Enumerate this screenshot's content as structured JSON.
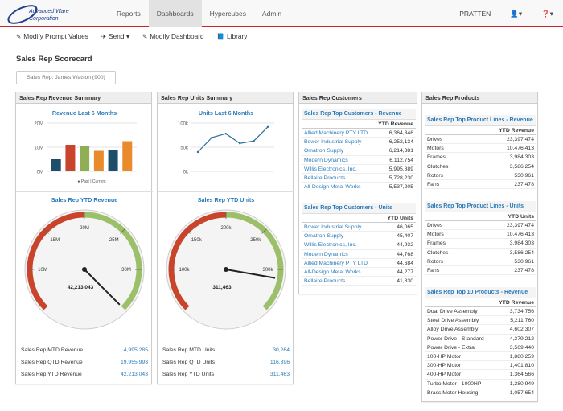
{
  "brand": {
    "line1": "Advanced Ware",
    "line2": "Corporation"
  },
  "nav": {
    "items": [
      "Reports",
      "Dashboards",
      "Hypercubes",
      "Admin"
    ],
    "active": "Dashboards",
    "user": "PRATTEN"
  },
  "toolbar": {
    "modify_prompt": "Modify Prompt Values",
    "send": "Send",
    "modify_dashboard": "Modify Dashboard",
    "library": "Library"
  },
  "page": {
    "title": "Sales Rep Scorecard",
    "prompt": "Sales Rep: James Watson (900)"
  },
  "revenue_panel": {
    "title": "Sales Rep Revenue Summary",
    "chart_title": "Revenue Last 6 Months",
    "gauge_title": "Sales Rep YTD Revenue",
    "gauge_value": "42,213,043",
    "rows": [
      [
        "Sales Rep MTD Revenue",
        "4,995,285"
      ],
      [
        "Sales Rep QTD Revenue",
        "19,955,993"
      ],
      [
        "Sales Rep YTD Revenue",
        "42,213,043"
      ]
    ]
  },
  "units_panel": {
    "title": "Sales Rep Units Summary",
    "chart_title": "Units Last 6 Months",
    "gauge_title": "Sales Rep YTD Units",
    "gauge_value": "311,463",
    "rows": [
      [
        "Sales Rep MTD Units",
        "30,264"
      ],
      [
        "Sales Rep QTD Units",
        "116,396"
      ],
      [
        "Sales Rep YTD Units",
        "311,463"
      ]
    ]
  },
  "customers_panel": {
    "title": "Sales Rep Customers",
    "revenue_table": {
      "title": "Sales Rep Top Customers - Revenue",
      "header": "YTD Revenue",
      "rows": [
        [
          "Allied Machinery PTY LTD",
          "6,364,346"
        ],
        [
          "Bower Industrial Supply",
          "6,252,134"
        ],
        [
          "Omatron Supply",
          "6,214,381"
        ],
        [
          "Modern Dynamics",
          "6,112,754"
        ],
        [
          "Willis Electronics, Inc.",
          "5,995,889"
        ],
        [
          "Bellaire Products",
          "5,728,230"
        ],
        [
          "All-Design Metal Works",
          "5,537,205"
        ]
      ]
    },
    "units_table": {
      "title": "Sales Rep Top Customers - Units",
      "header": "YTD Units",
      "rows": [
        [
          "Bower Industrial Supply",
          "46,065"
        ],
        [
          "Omatron Supply",
          "45,407"
        ],
        [
          "Willis Electronics, Inc.",
          "44,932"
        ],
        [
          "Modern Dynamics",
          "44,768"
        ],
        [
          "Allied Machinery PTY LTD",
          "44,684"
        ],
        [
          "All-Design Metal Works",
          "44,277"
        ],
        [
          "Bellaire Products",
          "41,330"
        ]
      ]
    }
  },
  "products_panel": {
    "title": "Sales Rep Products",
    "revenue_table": {
      "title": "Sales Rep Top Product Lines - Revenue",
      "header": "YTD Revenue",
      "rows": [
        [
          "Drives",
          "23,397,474"
        ],
        [
          "Motors",
          "10,476,413"
        ],
        [
          "Frames",
          "3,984,303"
        ],
        [
          "Clutches",
          "3,586,254"
        ],
        [
          "Rotors",
          "530,961"
        ],
        [
          "Fans",
          "237,478"
        ]
      ]
    },
    "units_table": {
      "title": "Sales Rep Top Product Lines - Units",
      "header": "YTD Units",
      "rows": [
        [
          "Drives",
          "23,397,474"
        ],
        [
          "Motors",
          "10,476,413"
        ],
        [
          "Frames",
          "3,984,303"
        ],
        [
          "Clutches",
          "3,586,254"
        ],
        [
          "Rotors",
          "530,961"
        ],
        [
          "Fans",
          "237,478"
        ]
      ]
    },
    "top10_table": {
      "title": "Sales Rep Top 10 Products - Revenue",
      "header": "YTD Revenue",
      "rows": [
        [
          "Dual Drive Assembly",
          "3,734,756"
        ],
        [
          "Steel Drive Assembly",
          "5,211,760"
        ],
        [
          "Alloy Drive Assembly",
          "4,602,307"
        ],
        [
          "Power Drive - Standard",
          "4,279,212"
        ],
        [
          "Power Drive - Extra",
          "3,569,440"
        ],
        [
          "100-HP Motor",
          "1,880,259"
        ],
        [
          "300-HP Motor",
          "1,401,810"
        ],
        [
          "400-HP Motor",
          "1,364,566"
        ],
        [
          "Turbo Motor - 1000HP",
          "1,280,949"
        ],
        [
          "Brass Motor Housing",
          "1,057,654"
        ]
      ]
    }
  },
  "chart_data": [
    {
      "type": "bar",
      "title": "Revenue Last 6 Months",
      "categories": [
        "",
        "",
        "",
        "",
        "",
        ""
      ],
      "values": [
        5,
        11,
        10.5,
        8.5,
        9,
        12.5
      ],
      "colors": [
        "#1f4e6b",
        "#c8452c",
        "#8fae55",
        "#e98a2c",
        "#1f4e6b",
        "#e98a2c"
      ],
      "yticks": [
        "0M",
        "10M",
        "20M"
      ],
      "ylim": [
        0,
        20
      ],
      "legend": "● Past | Current"
    },
    {
      "type": "line",
      "title": "Units Last 6 Months",
      "values": [
        40,
        70,
        78,
        58,
        63,
        92
      ],
      "yticks": [
        "0k",
        "50k",
        "100k"
      ],
      "ylim": [
        0,
        100
      ]
    },
    {
      "type": "gauge",
      "title": "Sales Rep YTD Revenue",
      "ticks": [
        "10M",
        "15M",
        "20M",
        "25M",
        "30M"
      ],
      "range": [
        5,
        35
      ],
      "value": 42.2
    },
    {
      "type": "gauge",
      "title": "Sales Rep YTD Units",
      "ticks": [
        "100k",
        "150k",
        "200k",
        "250k",
        "300k"
      ],
      "range": [
        50,
        350
      ],
      "value": 311
    }
  ]
}
